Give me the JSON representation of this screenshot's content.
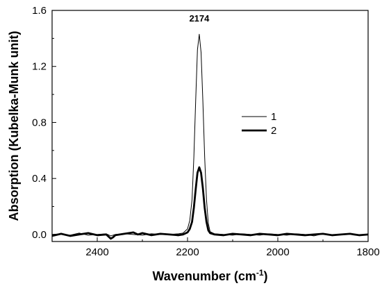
{
  "chart_data": {
    "type": "line",
    "title": "",
    "xlabel": "Wavenumber (cm",
    "xlabel_sup": "-1",
    "xlabel_suffix": ")",
    "ylabel": "Absorption (Kubelka-Munk unit)",
    "xlim": [
      2500,
      1800
    ],
    "ylim": [
      -0.05,
      1.6
    ],
    "x_reversed": true,
    "x_ticks": [
      2400,
      2200,
      2000,
      1800
    ],
    "x_tick_labels": [
      "2400",
      "2200",
      "2000",
      "1800"
    ],
    "y_ticks": [
      0.0,
      0.4,
      0.8,
      1.2,
      1.6
    ],
    "y_tick_labels": [
      "0.0",
      "0.4",
      "0.8",
      "1.2",
      "1.6"
    ],
    "grid": false,
    "legend_position": "right-middle",
    "annotations": [
      {
        "text": "2174",
        "x": 2174,
        "y": 1.52
      }
    ],
    "series": [
      {
        "name": "1",
        "stroke_weight": "thin",
        "color": "#000000",
        "x": [
          2500,
          2480,
          2460,
          2440,
          2420,
          2400,
          2380,
          2370,
          2360,
          2340,
          2320,
          2300,
          2280,
          2260,
          2240,
          2220,
          2210,
          2200,
          2195,
          2190,
          2186,
          2182,
          2178,
          2174,
          2170,
          2166,
          2162,
          2158,
          2154,
          2150,
          2140,
          2120,
          2100,
          2080,
          2060,
          2040,
          2020,
          2000,
          1980,
          1960,
          1940,
          1920,
          1900,
          1880,
          1860,
          1840,
          1820,
          1800
        ],
        "y": [
          0.0,
          0.005,
          -0.005,
          0.01,
          -0.005,
          0.0,
          0.005,
          -0.01,
          0.0,
          0.005,
          0.0,
          -0.005,
          0.005,
          0.0,
          0.0,
          0.005,
          0.01,
          0.04,
          0.1,
          0.25,
          0.55,
          0.95,
          1.32,
          1.43,
          1.3,
          0.95,
          0.55,
          0.25,
          0.08,
          0.02,
          0.005,
          0.0,
          -0.005,
          0.005,
          0.0,
          -0.005,
          0.005,
          0.0,
          -0.005,
          0.005,
          0.0,
          -0.01,
          0.005,
          -0.005,
          0.0,
          0.005,
          -0.005,
          0.0
        ]
      },
      {
        "name": "2",
        "stroke_weight": "thick",
        "color": "#000000",
        "x": [
          2500,
          2480,
          2460,
          2440,
          2420,
          2400,
          2380,
          2370,
          2365,
          2360,
          2340,
          2320,
          2310,
          2300,
          2280,
          2260,
          2240,
          2220,
          2210,
          2200,
          2195,
          2190,
          2186,
          2182,
          2178,
          2174,
          2170,
          2166,
          2162,
          2158,
          2154,
          2150,
          2140,
          2120,
          2100,
          2080,
          2060,
          2040,
          2020,
          2000,
          1980,
          1960,
          1940,
          1920,
          1900,
          1880,
          1860,
          1840,
          1820,
          1800
        ],
        "y": [
          -0.01,
          0.005,
          -0.01,
          0.0,
          0.01,
          -0.005,
          0.0,
          -0.03,
          -0.02,
          -0.005,
          0.005,
          0.015,
          0.0,
          0.01,
          -0.005,
          0.005,
          0.0,
          -0.005,
          0.0,
          0.015,
          0.04,
          0.09,
          0.19,
          0.32,
          0.44,
          0.48,
          0.44,
          0.33,
          0.19,
          0.09,
          0.03,
          0.01,
          0.0,
          -0.005,
          0.005,
          0.0,
          -0.005,
          0.005,
          0.0,
          -0.005,
          0.005,
          0.0,
          -0.005,
          0.0,
          0.005,
          -0.005,
          0.0,
          0.005,
          -0.005,
          0.0
        ]
      }
    ]
  }
}
